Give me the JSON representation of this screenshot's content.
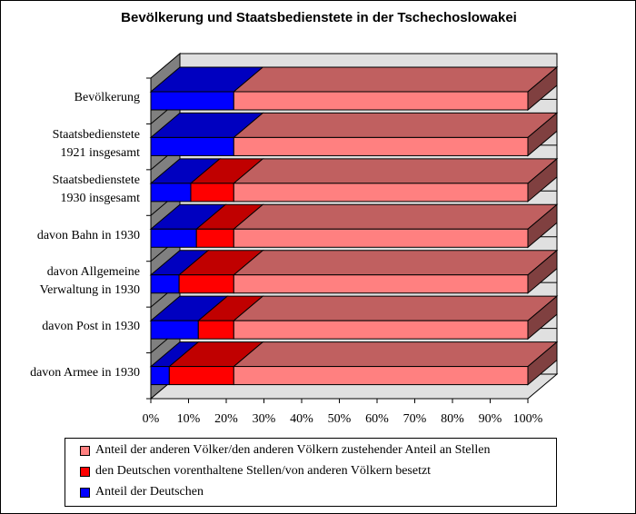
{
  "chart_data": {
    "type": "bar",
    "subtype": "stacked-100-horizontal-3d",
    "title": "Bevölkerung und Staatsbedienstete in der Tschechoslowakei",
    "categories": [
      [
        "Bevölkerung"
      ],
      [
        "Staatsbedienstete",
        "1921 insgesamt"
      ],
      [
        "Staatsbedienstete",
        "1930 insgesamt"
      ],
      [
        "davon Bahn in 1930"
      ],
      [
        "davon Allgemeine",
        "Verwaltung in 1930"
      ],
      [
        "davon Post in 1930"
      ],
      [
        "davon Armee in 1930"
      ]
    ],
    "series": [
      {
        "name": "Anteil der Deutschen",
        "color": "#0000FF",
        "top": "#0000C0",
        "values": [
          22.0,
          22.0,
          10.6,
          12.1,
          7.5,
          12.6,
          4.9
        ]
      },
      {
        "name": "den Deutschen vorenthaltene Stellen/von anderen Völkern besetzt",
        "color": "#FF0000",
        "top": "#C00000",
        "values": [
          0,
          0,
          11.4,
          9.9,
          14.5,
          9.4,
          17.1
        ]
      },
      {
        "name": "Anteil der anderen Völker/den anderen Völkern zustehender Anteil an Stellen",
        "color": "#FF8080",
        "top": "#C06060",
        "side": "#804040",
        "values": [
          78.0,
          78.0,
          78.0,
          78.0,
          78.0,
          78.0,
          78.0
        ]
      }
    ],
    "xticks": [
      "0%",
      "10%",
      "20%",
      "30%",
      "40%",
      "50%",
      "60%",
      "70%",
      "80%",
      "90%",
      "100%"
    ],
    "xlim": [
      0,
      100
    ],
    "legend_order": [
      2,
      1,
      0
    ],
    "legend_position": "bottom"
  }
}
